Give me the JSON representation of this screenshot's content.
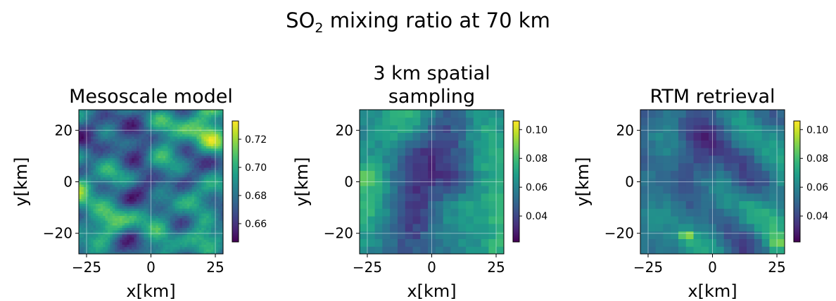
{
  "suptitle": {
    "prefix": "SO",
    "subscript": "2",
    "suffix": " mixing ratio at 70 km"
  },
  "colormap": [
    "#440154",
    "#482878",
    "#3e4989",
    "#31688e",
    "#26828e",
    "#1f9e89",
    "#35b779",
    "#6ece58",
    "#b5de2b",
    "#fde725"
  ],
  "chart_data": [
    {
      "type": "heatmap",
      "title_lines": [
        "Mesoscale model"
      ],
      "xlabel": "x[km]",
      "ylabel": "y[km]",
      "xlim": [
        -28,
        28
      ],
      "ylim": [
        -28,
        28
      ],
      "xticks": [
        -25,
        0,
        25
      ],
      "xticklabels": [
        "−25",
        "0",
        "25"
      ],
      "yticks": [
        -20,
        0,
        20
      ],
      "yticklabels": [
        "−20",
        "0",
        "20"
      ],
      "grid": true,
      "colorbar": {
        "min": 0.647,
        "max": 0.733,
        "ticks": [
          0.66,
          0.68,
          0.7,
          0.72
        ],
        "ticklabels": [
          "0.66",
          "0.68",
          "0.70",
          "0.72"
        ]
      },
      "grid_size": 60,
      "value_range": [
        0.648,
        0.732
      ],
      "seed": 11,
      "features": [
        {
          "x": -8,
          "y": 9,
          "r": 9,
          "amp": -0.6
        },
        {
          "x": -2,
          "y": -3,
          "r": 6,
          "amp": -0.4
        },
        {
          "x": 18,
          "y": 0,
          "r": 7,
          "amp": -0.35
        },
        {
          "x": -27,
          "y": 0,
          "r": 3,
          "amp": 0.9
        },
        {
          "x": 20,
          "y": 24,
          "r": 5,
          "amp": 0.6
        },
        {
          "x": -15,
          "y": -16,
          "r": 4,
          "amp": 0.55
        },
        {
          "x": 16,
          "y": -10,
          "r": 5,
          "amp": 0.45
        },
        {
          "x": 5,
          "y": -20,
          "r": 4,
          "amp": 0.35
        }
      ]
    },
    {
      "type": "heatmap",
      "title_lines": [
        "3 km spatial",
        "sampling"
      ],
      "xlabel": "x[km]",
      "ylabel": "y[km]",
      "xlim": [
        -28,
        28
      ],
      "ylim": [
        -28,
        28
      ],
      "xticks": [
        -25,
        0,
        25
      ],
      "xticklabels": [
        "−25",
        "0",
        "25"
      ],
      "yticks": [
        -20,
        0,
        20
      ],
      "yticklabels": [
        "−20",
        "0",
        "20"
      ],
      "grid": true,
      "colorbar": {
        "min": 0.022,
        "max": 0.106,
        "ticks": [
          0.04,
          0.06,
          0.08,
          0.1
        ],
        "ticklabels": [
          "0.04",
          "0.06",
          "0.08",
          "0.10"
        ]
      },
      "grid_size": 19,
      "value_range": [
        0.03,
        0.085
      ],
      "seed": 23,
      "features": [
        {
          "x": -8,
          "y": 9,
          "r": 8,
          "amp": -0.65
        },
        {
          "x": 10,
          "y": 1,
          "r": 6,
          "amp": -0.35
        },
        {
          "x": -27,
          "y": 2,
          "r": 3,
          "amp": 0.6
        },
        {
          "x": 16,
          "y": -10,
          "r": 5,
          "amp": 0.35
        }
      ]
    },
    {
      "type": "heatmap",
      "title_lines": [
        "RTM retrieval"
      ],
      "xlabel": "x[km]",
      "ylabel": "y[km]",
      "xlim": [
        -28,
        28
      ],
      "ylim": [
        -28,
        28
      ],
      "xticks": [
        -25,
        0,
        25
      ],
      "xticklabels": [
        "−25",
        "0",
        "25"
      ],
      "yticks": [
        -20,
        0,
        20
      ],
      "yticklabels": [
        "−20",
        "0",
        "20"
      ],
      "grid": true,
      "colorbar": {
        "min": 0.022,
        "max": 0.106,
        "ticks": [
          0.04,
          0.06,
          0.08,
          0.1
        ],
        "ticklabels": [
          "0.04",
          "0.06",
          "0.08",
          "0.10"
        ]
      },
      "grid_size": 19,
      "value_range": [
        0.028,
        0.09
      ],
      "seed": 37,
      "features": [
        {
          "x": -8,
          "y": 9,
          "r": 8,
          "amp": -0.65
        },
        {
          "x": 10,
          "y": 1,
          "r": 6,
          "amp": -0.35
        },
        {
          "x": -27,
          "y": 2,
          "r": 3,
          "amp": 0.6
        },
        {
          "x": 16,
          "y": -12,
          "r": 5,
          "amp": 0.4
        },
        {
          "x": -10,
          "y": -21,
          "r": 1.5,
          "amp": 1.6
        },
        {
          "x": 25,
          "y": -24,
          "r": 2,
          "amp": 0.8
        }
      ]
    }
  ]
}
